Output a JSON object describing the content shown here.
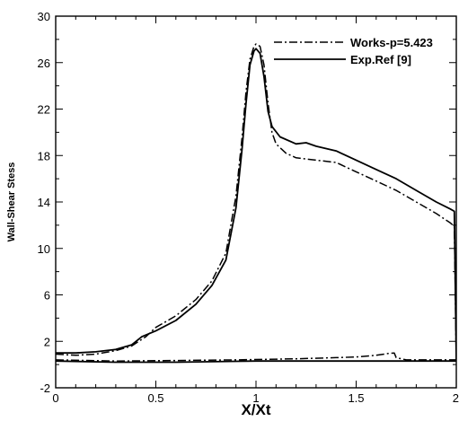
{
  "chart_data": {
    "type": "line",
    "xlabel": "X/Xt",
    "ylabel": "Wall-Shear Stess",
    "xlim": [
      0,
      2
    ],
    "ylim": [
      -2,
      30
    ],
    "x_ticks": [
      "0",
      "0.5",
      "1",
      "1.5",
      "2"
    ],
    "y_ticks": [
      "-2",
      "2",
      "6",
      "10",
      "14",
      "18",
      "22",
      "26",
      "30"
    ],
    "x_tick_values": [
      0,
      0.5,
      1,
      1.5,
      2
    ],
    "y_tick_values": [
      -2,
      2,
      6,
      10,
      14,
      18,
      22,
      26,
      30
    ],
    "grid": false,
    "legend_position": "top-right",
    "series": [
      {
        "name": "Works-p=5.423",
        "style": "dash-dot",
        "segments": [
          [
            [
              0,
              0.9
            ],
            [
              0.1,
              0.8
            ],
            [
              0.2,
              0.9
            ],
            [
              0.3,
              1.2
            ],
            [
              0.38,
              1.6
            ],
            [
              0.45,
              2.4
            ],
            [
              0.5,
              3.2
            ],
            [
              0.55,
              3.7
            ],
            [
              0.6,
              4.2
            ],
            [
              0.7,
              5.6
            ],
            [
              0.78,
              7.2
            ],
            [
              0.85,
              9.6
            ],
            [
              0.9,
              14.5
            ],
            [
              0.93,
              19.5
            ],
            [
              0.95,
              23.5
            ],
            [
              0.97,
              26.3
            ],
            [
              0.99,
              27.4
            ],
            [
              1.0,
              27.6
            ],
            [
              1.02,
              27.4
            ],
            [
              1.04,
              25.8
            ],
            [
              1.06,
              22.5
            ],
            [
              1.08,
              20.0
            ],
            [
              1.1,
              19.0
            ],
            [
              1.15,
              18.2
            ],
            [
              1.2,
              17.8
            ],
            [
              1.3,
              17.6
            ],
            [
              1.4,
              17.4
            ],
            [
              1.5,
              16.6
            ],
            [
              1.6,
              15.8
            ],
            [
              1.7,
              15.0
            ],
            [
              1.8,
              14.0
            ],
            [
              1.9,
              13.0
            ],
            [
              1.97,
              12.2
            ],
            [
              1.99,
              11.9
            ],
            [
              2.0,
              0.2
            ]
          ],
          [
            [
              0,
              0.4
            ],
            [
              0.3,
              0.3
            ],
            [
              0.6,
              0.35
            ],
            [
              0.9,
              0.4
            ],
            [
              1.2,
              0.5
            ],
            [
              1.4,
              0.6
            ],
            [
              1.5,
              0.65
            ],
            [
              1.6,
              0.8
            ],
            [
              1.66,
              0.95
            ],
            [
              1.69,
              1.0
            ],
            [
              1.7,
              0.6
            ],
            [
              1.75,
              0.4
            ],
            [
              1.9,
              0.4
            ],
            [
              2.0,
              0.4
            ]
          ]
        ]
      },
      {
        "name": "Exp.Ref [9]",
        "style": "solid",
        "segments": [
          [
            [
              0,
              1.0
            ],
            [
              0.1,
              1.0
            ],
            [
              0.2,
              1.1
            ],
            [
              0.3,
              1.3
            ],
            [
              0.38,
              1.7
            ],
            [
              0.43,
              2.4
            ],
            [
              0.5,
              2.9
            ],
            [
              0.6,
              3.8
            ],
            [
              0.7,
              5.2
            ],
            [
              0.78,
              6.8
            ],
            [
              0.85,
              9.0
            ],
            [
              0.9,
              13.5
            ],
            [
              0.93,
              18.5
            ],
            [
              0.95,
              22.5
            ],
            [
              0.97,
              25.8
            ],
            [
              0.99,
              27.0
            ],
            [
              1.0,
              27.2
            ],
            [
              1.02,
              26.8
            ],
            [
              1.04,
              24.8
            ],
            [
              1.06,
              21.8
            ],
            [
              1.08,
              20.5
            ],
            [
              1.12,
              19.6
            ],
            [
              1.2,
              19.0
            ],
            [
              1.25,
              19.1
            ],
            [
              1.3,
              18.8
            ],
            [
              1.4,
              18.4
            ],
            [
              1.5,
              17.6
            ],
            [
              1.6,
              16.8
            ],
            [
              1.7,
              16.0
            ],
            [
              1.8,
              15.0
            ],
            [
              1.9,
              14.0
            ],
            [
              1.97,
              13.4
            ],
            [
              1.99,
              13.2
            ],
            [
              2.0,
              0.3
            ]
          ],
          [
            [
              0,
              0.3
            ],
            [
              0.3,
              0.2
            ],
            [
              0.6,
              0.2
            ],
            [
              1.0,
              0.3
            ],
            [
              1.5,
              0.3
            ],
            [
              2.0,
              0.3
            ]
          ]
        ]
      }
    ]
  },
  "legend": {
    "entries": [
      "Works-p=5.423",
      "Exp.Ref [9]"
    ]
  }
}
